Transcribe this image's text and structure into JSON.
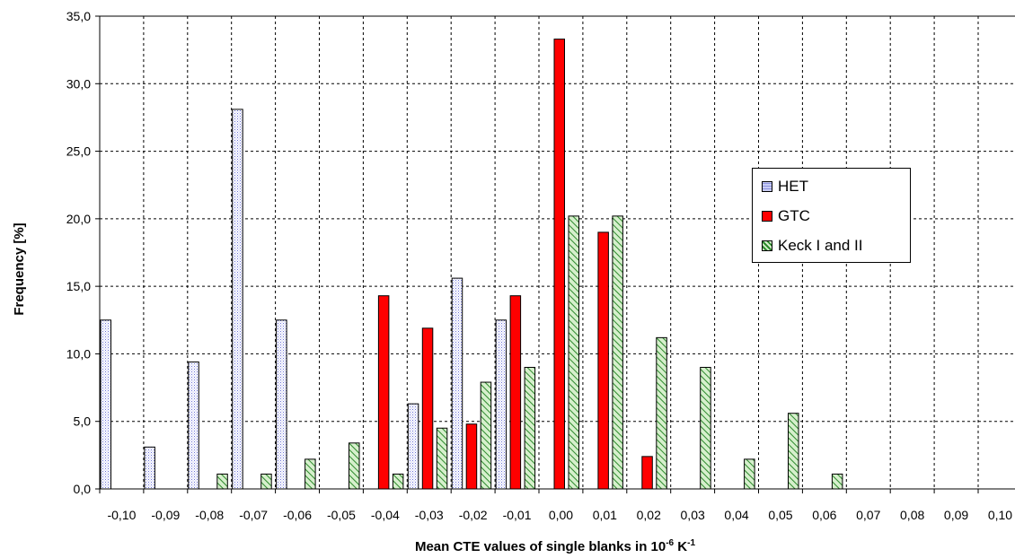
{
  "chart_data": {
    "type": "bar",
    "xlabel_main": "Mean CTE values of single blanks in 10",
    "xlabel_exp1": "-6",
    "xlabel_unit": " K",
    "xlabel_exp2": "-1",
    "ylabel": "Frequency [%]",
    "ylim": [
      0,
      35
    ],
    "yticks": [
      "0,0",
      "5,0",
      "10,0",
      "15,0",
      "20,0",
      "25,0",
      "30,0",
      "35,0"
    ],
    "categories": [
      "-0,10",
      "-0,09",
      "-0,08",
      "-0,07",
      "-0,06",
      "-0,05",
      "-0,04",
      "-0,03",
      "-0,02",
      "-0,01",
      "0,00",
      "0,01",
      "0,02",
      "0,03",
      "0,04",
      "0,05",
      "0,06",
      "0,07",
      "0,08",
      "0,09",
      "0,10"
    ],
    "grid": true,
    "legend_position": "right",
    "series": [
      {
        "name": "HET",
        "color": "#c8ccf4",
        "pattern": "dots",
        "values": [
          12.5,
          3.1,
          9.4,
          28.1,
          12.5,
          0,
          0,
          6.3,
          15.6,
          12.5,
          0,
          0,
          0,
          0,
          0,
          0,
          0,
          0,
          0,
          0,
          0
        ]
      },
      {
        "name": "GTC",
        "color": "#ff0000",
        "pattern": "solid",
        "values": [
          0,
          0,
          0,
          0,
          0,
          0,
          14.3,
          11.9,
          4.8,
          14.3,
          33.3,
          19.0,
          2.4,
          0,
          0,
          0,
          0,
          0,
          0,
          0,
          0
        ]
      },
      {
        "name": "Keck I and II",
        "color": "#b8e0a8",
        "pattern": "hatch",
        "values": [
          0,
          0,
          1.1,
          1.1,
          2.2,
          3.4,
          1.1,
          4.5,
          7.9,
          9.0,
          20.2,
          20.2,
          11.2,
          9.0,
          2.2,
          5.6,
          1.1,
          0,
          0,
          0,
          0
        ]
      }
    ]
  }
}
